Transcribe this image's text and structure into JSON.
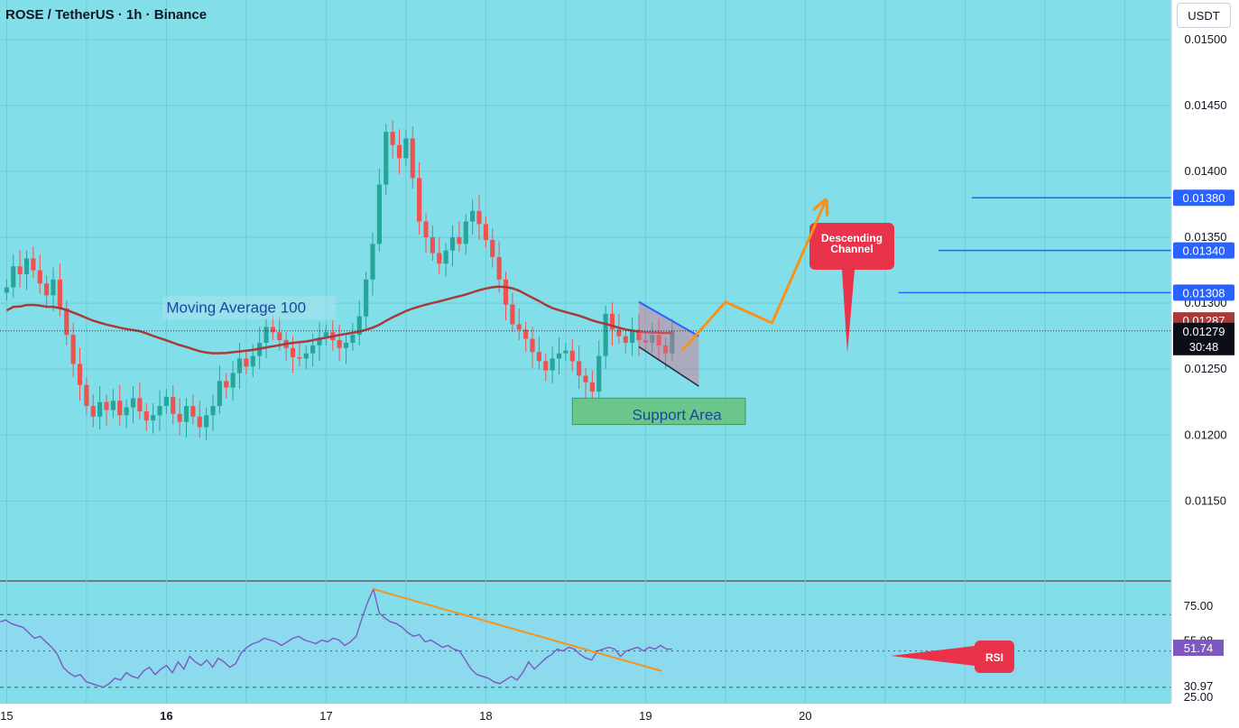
{
  "header": {
    "title": "ROSE / TetherUS · 1h · Binance",
    "currency_button": "USDT"
  },
  "colors": {
    "background": "#82dfe9",
    "bull": "#26a69a",
    "bear": "#ef5350",
    "ma": "#a93a3a",
    "accent_blue": "#2962ff",
    "projection_orange": "#f7931a",
    "callout_red": "#e8334a",
    "support_green": "#66c27a",
    "rsi_line": "#7e57c2"
  },
  "chart_data": [
    {
      "type": "candlestick",
      "symbol": "ROSE / TetherUS",
      "interval": "1h",
      "exchange": "Binance",
      "y_ticks": [
        "0.01500",
        "0.01450",
        "0.01400",
        "0.01350",
        "0.01300",
        "0.01250",
        "0.01200",
        "0.01150"
      ],
      "ylim": [
        0.0109,
        0.0153
      ],
      "x_ticks": [
        {
          "label": "15",
          "t": 0
        },
        {
          "label": "16",
          "t": 24
        },
        {
          "label": "17",
          "t": 48
        },
        {
          "label": "18",
          "t": 72
        },
        {
          "label": "19",
          "t": 96
        },
        {
          "label": "20",
          "t": 120
        }
      ],
      "bold_x_tick": "16",
      "closes": [
        0.01312,
        0.01328,
        0.01322,
        0.01334,
        0.01325,
        0.01315,
        0.01306,
        0.01318,
        0.01296,
        0.01276,
        0.01254,
        0.01238,
        0.01222,
        0.01214,
        0.01225,
        0.01219,
        0.01226,
        0.01215,
        0.01221,
        0.01228,
        0.01218,
        0.01211,
        0.01215,
        0.01222,
        0.01229,
        0.01216,
        0.0121,
        0.01222,
        0.01214,
        0.01206,
        0.01215,
        0.01222,
        0.01241,
        0.01236,
        0.01247,
        0.01258,
        0.01252,
        0.0126,
        0.0127,
        0.01282,
        0.01278,
        0.01272,
        0.01266,
        0.01259,
        0.01258,
        0.01262,
        0.01268,
        0.01274,
        0.01278,
        0.01272,
        0.01266,
        0.0127,
        0.01276,
        0.0129,
        0.01318,
        0.01345,
        0.0139,
        0.0143,
        0.0142,
        0.0141,
        0.01425,
        0.01395,
        0.01362,
        0.0135,
        0.01338,
        0.0133,
        0.0134,
        0.0135,
        0.01345,
        0.01362,
        0.0137,
        0.0136,
        0.01348,
        0.01335,
        0.01318,
        0.01299,
        0.01284,
        0.0128,
        0.01273,
        0.01263,
        0.01256,
        0.01249,
        0.01258,
        0.01262,
        0.01264,
        0.01256,
        0.01245,
        0.0124,
        0.01233,
        0.0126,
        0.01292,
        0.0128,
        0.01275,
        0.0127,
        0.0128,
        0.01272,
        0.0127,
        0.01276,
        0.01268,
        0.01262,
        0.01279
      ],
      "price_lines": [
        {
          "label": "0.01380",
          "value": 0.0138,
          "color": "#2962ff"
        },
        {
          "label": "0.01340",
          "value": 0.0134,
          "color": "#2962ff"
        },
        {
          "label": "0.01308",
          "value": 0.01308,
          "color": "#2962ff"
        }
      ],
      "ma_label": {
        "text": "0.01287",
        "value": 0.01287
      },
      "last_price": {
        "text": "0.01279",
        "countdown": "30:48",
        "value": 0.01279
      },
      "annotations": {
        "moving_average": "Moving Average 100",
        "descending_channel": "Descending\nChannel",
        "support_area": "Support Area",
        "rsi_tag": "RSI"
      }
    },
    {
      "type": "line",
      "name": "RSI",
      "y_ticks": [
        "75.00",
        "55.98",
        "30.97",
        "25.00"
      ],
      "ylim": [
        21,
        88
      ],
      "bands": [
        70,
        30
      ],
      "current": "51.74",
      "values": [
        66,
        67,
        65,
        64,
        63,
        60,
        57,
        58,
        55,
        52,
        48,
        41,
        38,
        36,
        37,
        33,
        32,
        31,
        30,
        32,
        35,
        34,
        38,
        36,
        35,
        39,
        41,
        37,
        40,
        42,
        38,
        44,
        40,
        47,
        44,
        42,
        45,
        41,
        46,
        44,
        41,
        43,
        49,
        52,
        54,
        55,
        57,
        56,
        55,
        53,
        55,
        57,
        58,
        56,
        55,
        54,
        56,
        55,
        57,
        56,
        53,
        55,
        58,
        68,
        77,
        84,
        71,
        68,
        66,
        65,
        63,
        60,
        58,
        59,
        55,
        56,
        54,
        52,
        53,
        51,
        50,
        45,
        40,
        37,
        36,
        35,
        33,
        32,
        34,
        36,
        34,
        38,
        44,
        40,
        43,
        46,
        48,
        51,
        50,
        52,
        51,
        48,
        46,
        45,
        50,
        51,
        52,
        51,
        47,
        50,
        51,
        52,
        50,
        52,
        51,
        53,
        51,
        51
      ]
    }
  ]
}
